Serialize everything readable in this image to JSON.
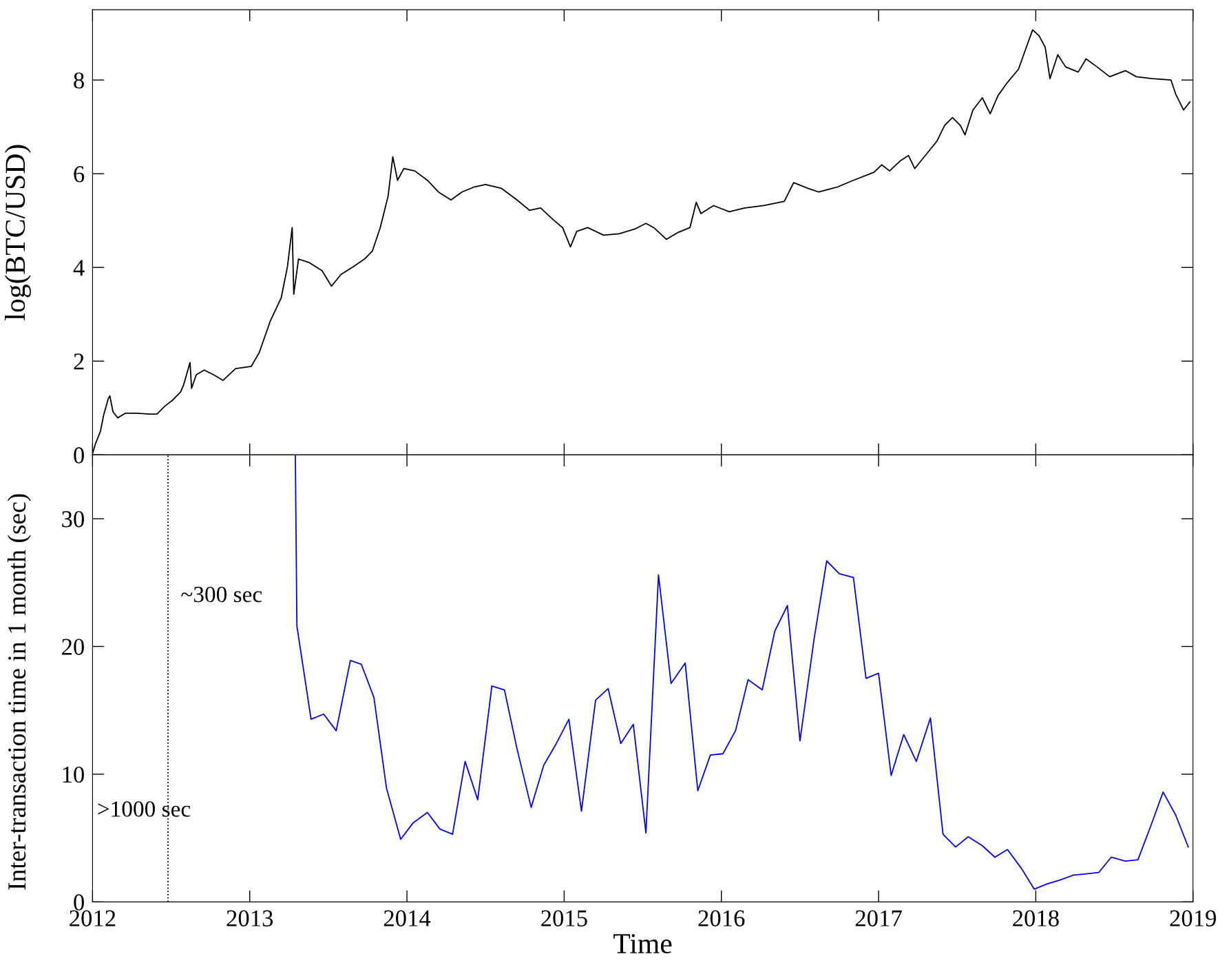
{
  "chart_data": [
    {
      "type": "line",
      "ylabel": "log(BTC/USD)",
      "tick_labels": "y",
      "xlim": [
        2012,
        2019
      ],
      "xticks": [
        2012,
        2013,
        2014,
        2015,
        2016,
        2017,
        2018,
        2019
      ],
      "ylim": [
        0,
        9.5
      ],
      "yticks": [
        0,
        2,
        4,
        6,
        8
      ],
      "series": [
        {
          "color": "#000000",
          "x": [
            2012.0,
            2012.02,
            2012.05,
            2012.07,
            2012.1,
            2012.11,
            2012.13,
            2012.16,
            2012.21,
            2012.28,
            2012.36,
            2012.41,
            2012.46,
            2012.51,
            2012.56,
            2012.58,
            2012.62,
            2012.63,
            2012.66,
            2012.71,
            2012.77,
            2012.83,
            2012.91,
            2013.01,
            2013.06,
            2013.13,
            2013.2,
            2013.24,
            2013.27,
            2013.28,
            2013.31,
            2013.38,
            2013.46,
            2013.52,
            2013.58,
            2013.66,
            2013.73,
            2013.78,
            2013.83,
            2013.88,
            2013.91,
            2013.94,
            2013.98,
            2014.05,
            2014.13,
            2014.2,
            2014.28,
            2014.35,
            2014.43,
            2014.5,
            2014.6,
            2014.7,
            2014.78,
            2014.85,
            2014.93,
            2014.99,
            2015.04,
            2015.08,
            2015.15,
            2015.25,
            2015.35,
            2015.45,
            2015.52,
            2015.57,
            2015.65,
            2015.72,
            2015.8,
            2015.84,
            2015.87,
            2015.95,
            2016.05,
            2016.15,
            2016.27,
            2016.4,
            2016.46,
            2016.55,
            2016.62,
            2016.74,
            2016.84,
            2016.97,
            2017.02,
            2017.07,
            2017.14,
            2017.19,
            2017.23,
            2017.29,
            2017.37,
            2017.42,
            2017.47,
            2017.52,
            2017.55,
            2017.6,
            2017.66,
            2017.71,
            2017.76,
            2017.82,
            2017.89,
            2017.94,
            2017.98,
            2018.02,
            2018.06,
            2018.09,
            2018.14,
            2018.19,
            2018.27,
            2018.32,
            2018.39,
            2018.47,
            2018.57,
            2018.64,
            2018.74,
            2018.86,
            2018.89,
            2018.94,
            2018.98
          ],
          "values": [
            0.03,
            0.25,
            0.5,
            0.84,
            1.2,
            1.26,
            0.92,
            0.79,
            0.89,
            0.89,
            0.87,
            0.87,
            1.04,
            1.17,
            1.34,
            1.5,
            1.97,
            1.42,
            1.71,
            1.81,
            1.71,
            1.59,
            1.84,
            1.89,
            2.18,
            2.85,
            3.35,
            4.02,
            4.85,
            3.43,
            4.18,
            4.1,
            3.93,
            3.6,
            3.85,
            4.02,
            4.18,
            4.35,
            4.85,
            5.52,
            6.36,
            5.86,
            6.11,
            6.06,
            5.86,
            5.61,
            5.44,
            5.61,
            5.72,
            5.77,
            5.69,
            5.44,
            5.22,
            5.27,
            5.02,
            4.85,
            4.44,
            4.77,
            4.85,
            4.69,
            4.72,
            4.82,
            4.94,
            4.85,
            4.6,
            4.74,
            4.85,
            5.39,
            5.15,
            5.32,
            5.19,
            5.27,
            5.32,
            5.41,
            5.81,
            5.69,
            5.61,
            5.72,
            5.86,
            6.03,
            6.19,
            6.06,
            6.28,
            6.39,
            6.11,
            6.36,
            6.69,
            7.03,
            7.2,
            7.03,
            6.83,
            7.36,
            7.62,
            7.28,
            7.67,
            7.95,
            8.23,
            8.7,
            9.07,
            8.95,
            8.7,
            8.03,
            8.54,
            8.28,
            8.17,
            8.45,
            8.28,
            8.07,
            8.2,
            8.07,
            8.03,
            8.0,
            7.7,
            7.36,
            7.53
          ]
        }
      ]
    },
    {
      "type": "line",
      "xlabel": "Time",
      "ylabel": "Inter-transaction time in 1 month (sec)",
      "xlim": [
        2012,
        2019
      ],
      "xticks": [
        2012,
        2013,
        2014,
        2015,
        2016,
        2017,
        2018,
        2019
      ],
      "ylim": [
        0,
        35
      ],
      "yticks": [
        0,
        10,
        20,
        30
      ],
      "ref_lines": [
        {
          "axis": "x",
          "value": 2012.48,
          "line_style": "dotted",
          "color": "#000000"
        }
      ],
      "annotations": [
        "~300 sec",
        ">1000 sec"
      ],
      "series": [
        {
          "color": "#0000ff",
          "x": [
            2013.29,
            2013.3,
            2013.39,
            2013.47,
            2013.55,
            2013.64,
            2013.71,
            2013.79,
            2013.87,
            2013.96,
            2014.04,
            2014.13,
            2014.21,
            2014.29,
            2014.37,
            2014.45,
            2014.54,
            2014.62,
            2014.7,
            2014.79,
            2014.87,
            2014.95,
            2015.03,
            2015.11,
            2015.2,
            2015.28,
            2015.36,
            2015.44,
            2015.52,
            2015.6,
            2015.68,
            2015.77,
            2015.85,
            2015.93,
            2016.01,
            2016.09,
            2016.17,
            2016.26,
            2016.34,
            2016.42,
            2016.5,
            2016.59,
            2016.67,
            2016.75,
            2016.84,
            2016.92,
            2017.0,
            2017.08,
            2017.16,
            2017.24,
            2017.33,
            2017.41,
            2017.49,
            2017.57,
            2017.66,
            2017.74,
            2017.82,
            2017.91,
            2017.99,
            2018.07,
            2018.15,
            2018.24,
            2018.32,
            2018.4,
            2018.48,
            2018.57,
            2018.65,
            2018.73,
            2018.81,
            2018.89,
            2018.97
          ],
          "values": [
            35,
            21.6,
            14.3,
            14.7,
            13.4,
            18.9,
            18.6,
            16.0,
            8.9,
            4.9,
            6.2,
            7.0,
            5.7,
            5.3,
            11.0,
            8.0,
            16.9,
            16.6,
            12.0,
            7.4,
            10.7,
            12.4,
            14.3,
            7.1,
            15.8,
            16.7,
            12.4,
            13.9,
            5.4,
            25.6,
            17.1,
            18.7,
            8.7,
            11.5,
            11.6,
            13.4,
            17.4,
            16.6,
            21.2,
            23.2,
            12.6,
            20.6,
            26.7,
            25.7,
            25.4,
            17.5,
            17.9,
            9.9,
            13.1,
            11.0,
            14.4,
            5.3,
            4.3,
            5.1,
            4.4,
            3.5,
            4.1,
            2.6,
            1.0,
            1.4,
            1.7,
            2.1,
            2.2,
            2.3,
            3.5,
            3.2,
            3.3,
            5.9,
            8.6,
            6.8,
            4.3
          ]
        }
      ]
    }
  ]
}
